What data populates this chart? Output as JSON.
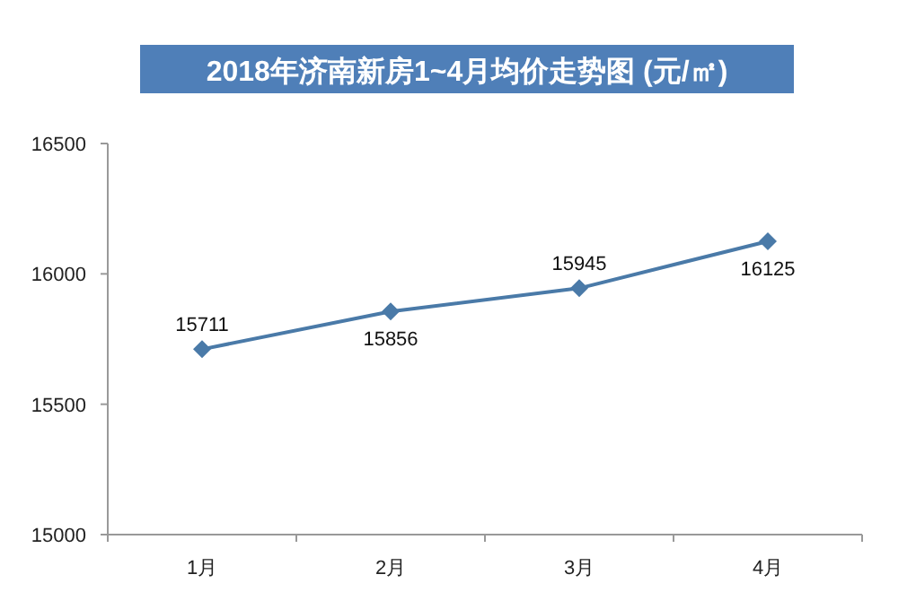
{
  "chart_data": {
    "type": "line",
    "title": "2018年济南新房1~4月均价走势图 (元/㎡)",
    "categories": [
      "1月",
      "2月",
      "3月",
      "4月"
    ],
    "series": [
      {
        "color": "#4a7aa8",
        "values": [
          15711,
          15856,
          15945,
          16125
        ]
      }
    ],
    "ylim": [
      15000,
      16500
    ],
    "yticks": [
      15000,
      15500,
      16000,
      16500
    ],
    "marker": "diamond",
    "line_style": "solid",
    "grid": false,
    "data_labels": true
  }
}
